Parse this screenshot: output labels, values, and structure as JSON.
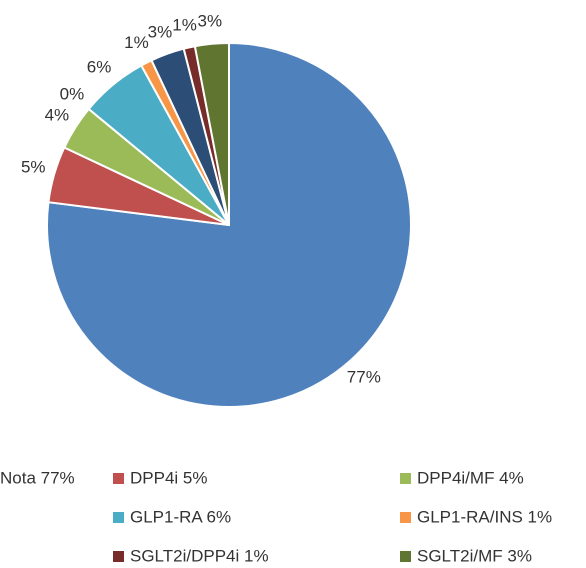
{
  "chart_data": {
    "type": "pie",
    "categories": [
      "Nota 77%",
      "DPP4i 5%",
      "DPP4i/MF 4%",
      null,
      "GLP1-RA 6%",
      "GLP1-RA/INS 1%",
      null,
      "SGLT2i/DPP4i 1%",
      "SGLT2i/MF 3%"
    ],
    "values": [
      77,
      5,
      4,
      0,
      6,
      1,
      3,
      1,
      3
    ],
    "value_labels": [
      "77%",
      "5%",
      "4%",
      "0%",
      "6%",
      "1%",
      "3%",
      "1%",
      "3%"
    ],
    "colors": [
      "#4f81bd",
      "#c0504d",
      "#9bbb59",
      "#8064a2",
      "#4bacc6",
      "#f79646",
      "#2c4d75",
      "#772c2a",
      "#5f7530"
    ],
    "legend": "bottom"
  }
}
